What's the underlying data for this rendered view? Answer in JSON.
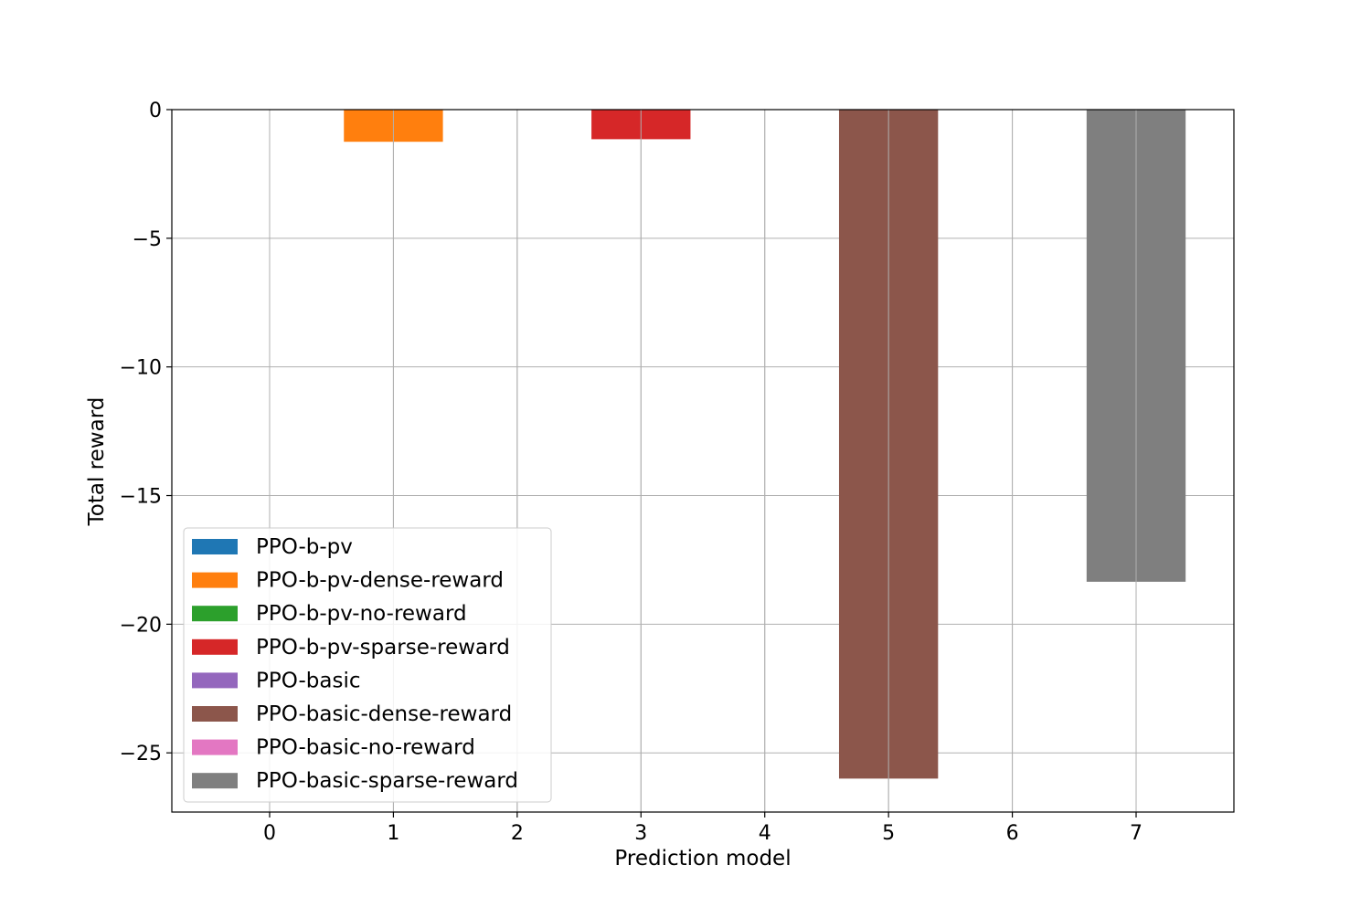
{
  "chart_data": {
    "type": "bar",
    "title": "",
    "xlabel": "Prediction model",
    "ylabel": "Total reward",
    "xlim": [
      -0.79,
      7.79
    ],
    "ylim": [
      -27.3,
      0
    ],
    "xticks": [
      0,
      1,
      2,
      3,
      4,
      5,
      6,
      7
    ],
    "yticks": [
      0,
      -5,
      -10,
      -15,
      -20,
      -25
    ],
    "ytick_labels": [
      "0",
      "−5",
      "−10",
      "−15",
      "−20",
      "−25"
    ],
    "grid": true,
    "legend_position": "lower-left",
    "bar_width": 0.8,
    "series": [
      {
        "name": "PPO-b-pv",
        "x": 0,
        "value": 0,
        "color": "#1f77b4"
      },
      {
        "name": "PPO-b-pv-dense-reward",
        "x": 1,
        "value": -1.25,
        "color": "#ff7f0e"
      },
      {
        "name": "PPO-b-pv-no-reward",
        "x": 2,
        "value": 0,
        "color": "#2ca02c"
      },
      {
        "name": "PPO-b-pv-sparse-reward",
        "x": 3,
        "value": -1.15,
        "color": "#d62728"
      },
      {
        "name": "PPO-basic",
        "x": 4,
        "value": 0,
        "color": "#9467bd"
      },
      {
        "name": "PPO-basic-dense-reward",
        "x": 5,
        "value": -26.0,
        "color": "#8c564b"
      },
      {
        "name": "PPO-basic-no-reward",
        "x": 6,
        "value": 0,
        "color": "#e377c2"
      },
      {
        "name": "PPO-basic-sparse-reward",
        "x": 7,
        "value": -18.35,
        "color": "#7f7f7f"
      }
    ]
  }
}
